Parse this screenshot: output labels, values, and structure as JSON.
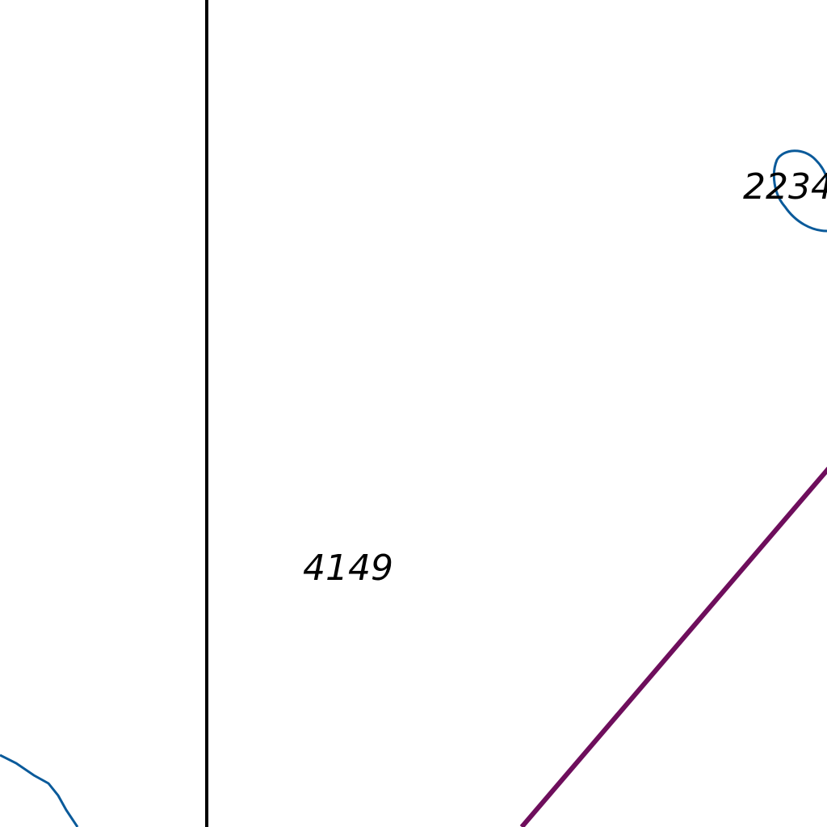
{
  "map": {
    "parcels": [
      {
        "id": "parcel-4149",
        "label": "4149"
      },
      {
        "id": "parcel-2234",
        "label": "2234"
      }
    ],
    "colors": {
      "background": "#ffffff",
      "parcel_boundary": "#000000",
      "water_contour": "#0a5a9a",
      "road_line": "#6e0e5c",
      "label_text": "#000000"
    }
  }
}
